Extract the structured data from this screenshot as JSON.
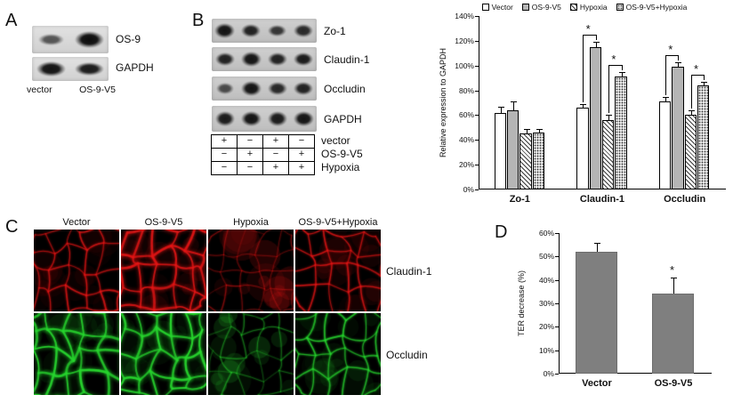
{
  "panels": {
    "a": {
      "label": "A",
      "blots": [
        {
          "name": "OS-9",
          "lanes": [
            0.5,
            1.0
          ]
        },
        {
          "name": "GAPDH",
          "lanes": [
            0.95,
            0.9
          ]
        }
      ],
      "lane_labels": [
        "vector",
        "OS-9-V5"
      ]
    },
    "b": {
      "label": "B",
      "blots": [
        {
          "name": "Zo-1",
          "lanes": [
            0.95,
            0.85,
            0.7,
            0.8
          ]
        },
        {
          "name": "Claudin-1",
          "lanes": [
            0.85,
            0.95,
            0.85,
            0.9
          ]
        },
        {
          "name": "Occludin",
          "lanes": [
            0.55,
            0.95,
            0.8,
            0.85
          ]
        },
        {
          "name": "GAPDH",
          "lanes": [
            0.9,
            0.95,
            0.9,
            0.95
          ]
        }
      ],
      "conditions": [
        {
          "name": "vector",
          "values": [
            "+",
            "−",
            "+",
            "−"
          ]
        },
        {
          "name": "OS-9-V5",
          "values": [
            "−",
            "+",
            "−",
            "+"
          ]
        },
        {
          "name": "Hypoxia",
          "values": [
            "−",
            "−",
            "+",
            "+"
          ]
        }
      ]
    },
    "c": {
      "label": "C",
      "column_headers": [
        "Vector",
        "OS-9-V5",
        "Hypoxia",
        "OS-9-V5+Hypoxia"
      ],
      "rows": [
        {
          "label": "Claudin-1",
          "stain_color": "#e01515",
          "signals": [
            "medium",
            "strong",
            "weak",
            "medium"
          ]
        },
        {
          "label": "Occludin",
          "stain_color": "#27d42e",
          "signals": [
            "strong",
            "strong",
            "weak",
            "medium"
          ]
        }
      ]
    },
    "d": {
      "label": "D"
    }
  },
  "chart_data": [
    {
      "id": "panel-b-chart",
      "type": "bar",
      "categories": [
        "Zo-1",
        "Claudin-1",
        "Occludin"
      ],
      "series": [
        {
          "name": "Vector",
          "fill": "white",
          "values": [
            62,
            66,
            71
          ],
          "errors": [
            5,
            3,
            4
          ]
        },
        {
          "name": "OS-9-V5",
          "fill": "gray",
          "values": [
            64,
            115,
            99
          ],
          "errors": [
            7,
            4,
            4
          ]
        },
        {
          "name": "Hypoxia",
          "fill": "hatch",
          "values": [
            45,
            56,
            60
          ],
          "errors": [
            4,
            4,
            4
          ]
        },
        {
          "name": "OS-9-V5+Hypoxia",
          "fill": "dots",
          "values": [
            46,
            91,
            84
          ],
          "errors": [
            3,
            4,
            3
          ]
        }
      ],
      "ylabel": "Relative expression to GAPDH",
      "ylim": [
        0,
        140
      ],
      "ytick_step": 20,
      "ytick_suffix": "%",
      "group_fill": 0.62,
      "legend": true,
      "significance": [
        {
          "category_index": 1,
          "series_pair": [
            0,
            1
          ],
          "label": "*"
        },
        {
          "category_index": 1,
          "series_pair": [
            2,
            3
          ],
          "label": "*"
        },
        {
          "category_index": 2,
          "series_pair": [
            0,
            1
          ],
          "label": "*"
        },
        {
          "category_index": 2,
          "series_pair": [
            2,
            3
          ],
          "label": "*"
        }
      ]
    },
    {
      "id": "panel-d-chart",
      "type": "bar",
      "categories": [
        "Vector",
        "OS-9-V5"
      ],
      "series": [
        {
          "name": "TER decrease",
          "fill": "darkgray",
          "values": [
            52,
            34
          ],
          "errors": [
            4,
            7
          ]
        }
      ],
      "ylabel": "TER decrease (%)",
      "ylim": [
        0,
        60
      ],
      "ytick_step": 10,
      "ytick_suffix": "%",
      "group_fill": 0.55,
      "legend": false,
      "annotations": [
        {
          "category_index": 1,
          "label": "*"
        }
      ]
    }
  ]
}
